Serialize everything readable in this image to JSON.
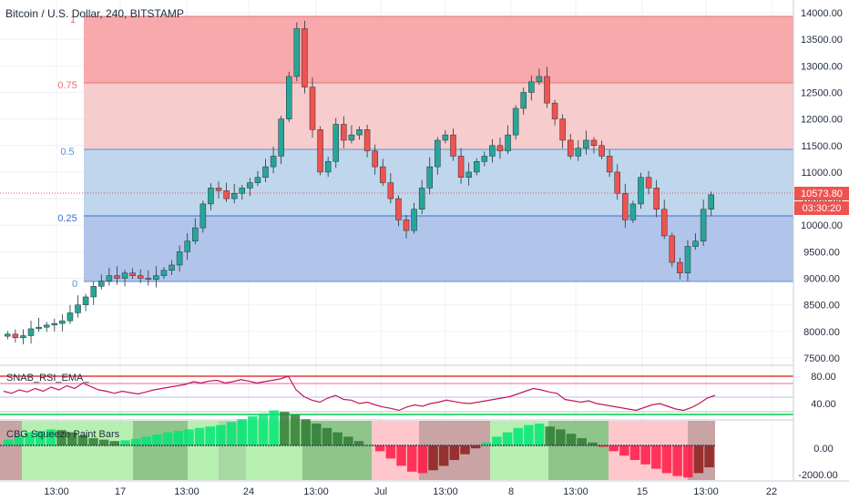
{
  "header": {
    "symbol_title": "Bitcoin / U.S. Dollar, 240, BITSTAMP"
  },
  "price_scale": {
    "ticks": [
      "14000.00",
      "13500.00",
      "13000.00",
      "12500.00",
      "12000.00",
      "11500.00",
      "11000.00",
      "10500.00",
      "10000.00",
      "9500.00",
      "9000.00",
      "8500.00",
      "8000.00",
      "7500.00"
    ],
    "current_price": "10573.80",
    "countdown": "03:30:20"
  },
  "fib_levels": {
    "labels": [
      "1",
      "0.75",
      "0.5",
      "0.25",
      "0"
    ],
    "zone_colors": {
      "upper_dark": "#f7a0a2",
      "upper_light": "#f5c6c8",
      "lower_light": "#b8d1ea",
      "lower_dark": "#a8bfe8"
    }
  },
  "rsi_panel": {
    "title": "SNAB_RSI_EMA_",
    "ticks": [
      "80.00",
      "40.00"
    ],
    "line_color": "#c2185b"
  },
  "squeeze_panel": {
    "title": "CBG Squeeze Paint Bars",
    "ticks": [
      "0.00",
      "-2000.00"
    ]
  },
  "time_axis": {
    "labels": [
      "13:00",
      "17",
      "13:00",
      "24",
      "13:00",
      "Jul",
      "13:00",
      "8",
      "13:00",
      "15",
      "13:00",
      "22"
    ]
  },
  "colors": {
    "candle_up": "#26a69a",
    "candle_down": "#ef5350",
    "price_label_bg": "#ef5350",
    "squeeze_green": "#00e676",
    "squeeze_red": "#ff1744"
  },
  "chart_data": {
    "type": "candlestick",
    "y_range": [
      7300,
      14200
    ],
    "fib_range": [
      8950,
      13900
    ],
    "price_series": [
      7950,
      7880,
      7920,
      8050,
      8080,
      8120,
      8150,
      8200,
      8350,
      8500,
      8650,
      8850,
      8950,
      9050,
      9000,
      9100,
      9050,
      9000,
      8980,
      9050,
      9150,
      9250,
      9500,
      9700,
      9950,
      10400,
      10700,
      10650,
      10500,
      10600,
      10700,
      10800,
      10900,
      11100,
      11300,
      12000,
      12800,
      13700,
      12600,
      11800,
      11000,
      11200,
      11900,
      11600,
      11700,
      11800,
      11400,
      11100,
      10800,
      10500,
      10100,
      9900,
      10300,
      10700,
      11100,
      11600,
      11700,
      11300,
      10900,
      11000,
      11200,
      11300,
      11500,
      11400,
      11700,
      12200,
      12500,
      12700,
      12800,
      12300,
      12000,
      11600,
      11300,
      11450,
      11600,
      11500,
      11300,
      11000,
      10600,
      10100,
      10400,
      10900,
      10700,
      10300,
      9800,
      9300,
      9100,
      9600,
      9700,
      10300,
      10573
    ],
    "rsi_series": [
      58,
      55,
      60,
      57,
      62,
      58,
      64,
      60,
      66,
      62,
      70,
      65,
      60,
      58,
      55,
      58,
      56,
      54,
      57,
      60,
      62,
      64,
      66,
      68,
      72,
      70,
      73,
      74,
      70,
      72,
      75,
      73,
      70,
      72,
      74,
      76,
      80,
      60,
      50,
      45,
      42,
      48,
      52,
      46,
      45,
      40,
      42,
      38,
      35,
      33,
      30,
      35,
      38,
      36,
      40,
      42,
      45,
      43,
      41,
      40,
      42,
      44,
      46,
      48,
      50,
      54,
      58,
      62,
      60,
      57,
      55,
      46,
      44,
      42,
      44,
      40,
      38,
      36,
      34,
      32,
      30,
      34,
      38,
      40,
      36,
      32,
      30,
      34,
      40,
      48,
      52
    ],
    "squeeze_series": [
      400,
      700,
      900,
      1000,
      1100,
      1050,
      900,
      700,
      500,
      400,
      300,
      350,
      450,
      600,
      750,
      900,
      1000,
      1100,
      1200,
      1300,
      1400,
      1600,
      1800,
      2000,
      2200,
      2400,
      2300,
      2100,
      1800,
      1500,
      1200,
      900,
      600,
      300,
      0,
      -400,
      -900,
      -1400,
      -1800,
      -1900,
      -1700,
      -1400,
      -1000,
      -600,
      -200,
      200,
      600,
      900,
      1200,
      1400,
      1500,
      1300,
      1100,
      800,
      500,
      200,
      -100,
      -400,
      -700,
      -1000,
      -1300,
      -1600,
      -1900,
      -2100,
      -2200,
      -1900,
      -1500
    ]
  }
}
